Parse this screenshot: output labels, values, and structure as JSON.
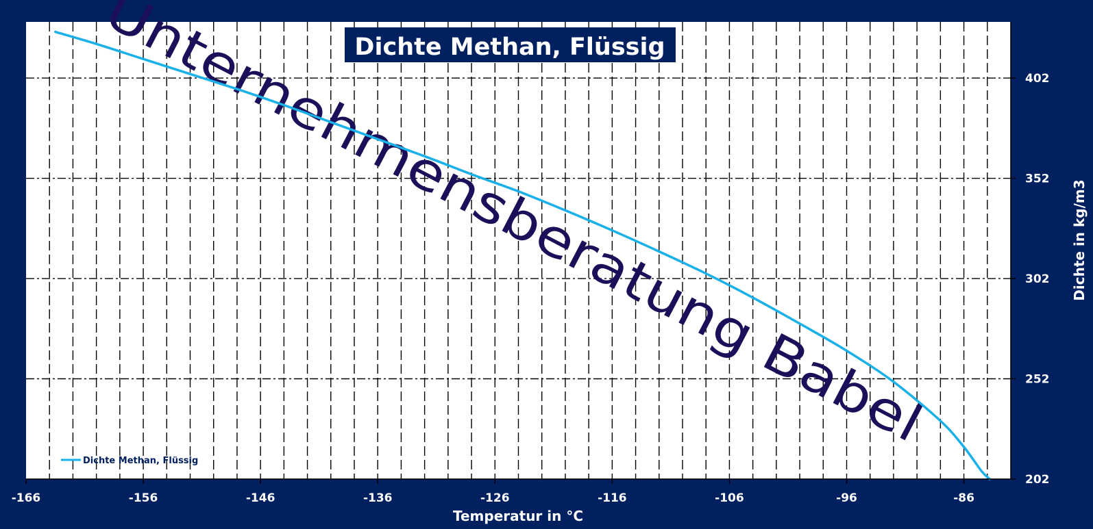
{
  "chart_data": {
    "type": "line",
    "title": "Dichte Methan, Flüssig",
    "xlabel": "Temperatur in °C",
    "ylabel": "Dichte in kg/m3",
    "xlim": [
      -166,
      -82
    ],
    "ylim": [
      202,
      430
    ],
    "x_ticks": [
      -166,
      -156,
      -146,
      -136,
      -126,
      -116,
      -106,
      -96,
      -86
    ],
    "y_ticks": [
      202,
      252,
      302,
      352,
      402
    ],
    "x_minor_step": 2,
    "grid": true,
    "legend": {
      "position": "bottom-left",
      "entries": [
        "Dichte Methan, Flüssig"
      ]
    },
    "series": [
      {
        "name": "Dichte Methan, Flüssig",
        "color": "#1ab0e8",
        "x": [
          -163.5,
          -160,
          -156,
          -152,
          -148,
          -144,
          -140,
          -136,
          -132,
          -128,
          -124,
          -120,
          -116,
          -112,
          -108,
          -104,
          -100,
          -96,
          -92,
          -88,
          -86,
          -84.5,
          -83.8
        ],
        "y": [
          425,
          419,
          411.5,
          404,
          396.5,
          388.5,
          380,
          371.5,
          363,
          354,
          345.5,
          336,
          326,
          315.5,
          304.5,
          292.5,
          279.5,
          266,
          250.5,
          231,
          218,
          206,
          202
        ]
      }
    ]
  },
  "watermark": "Unternehmensberatung Babel"
}
